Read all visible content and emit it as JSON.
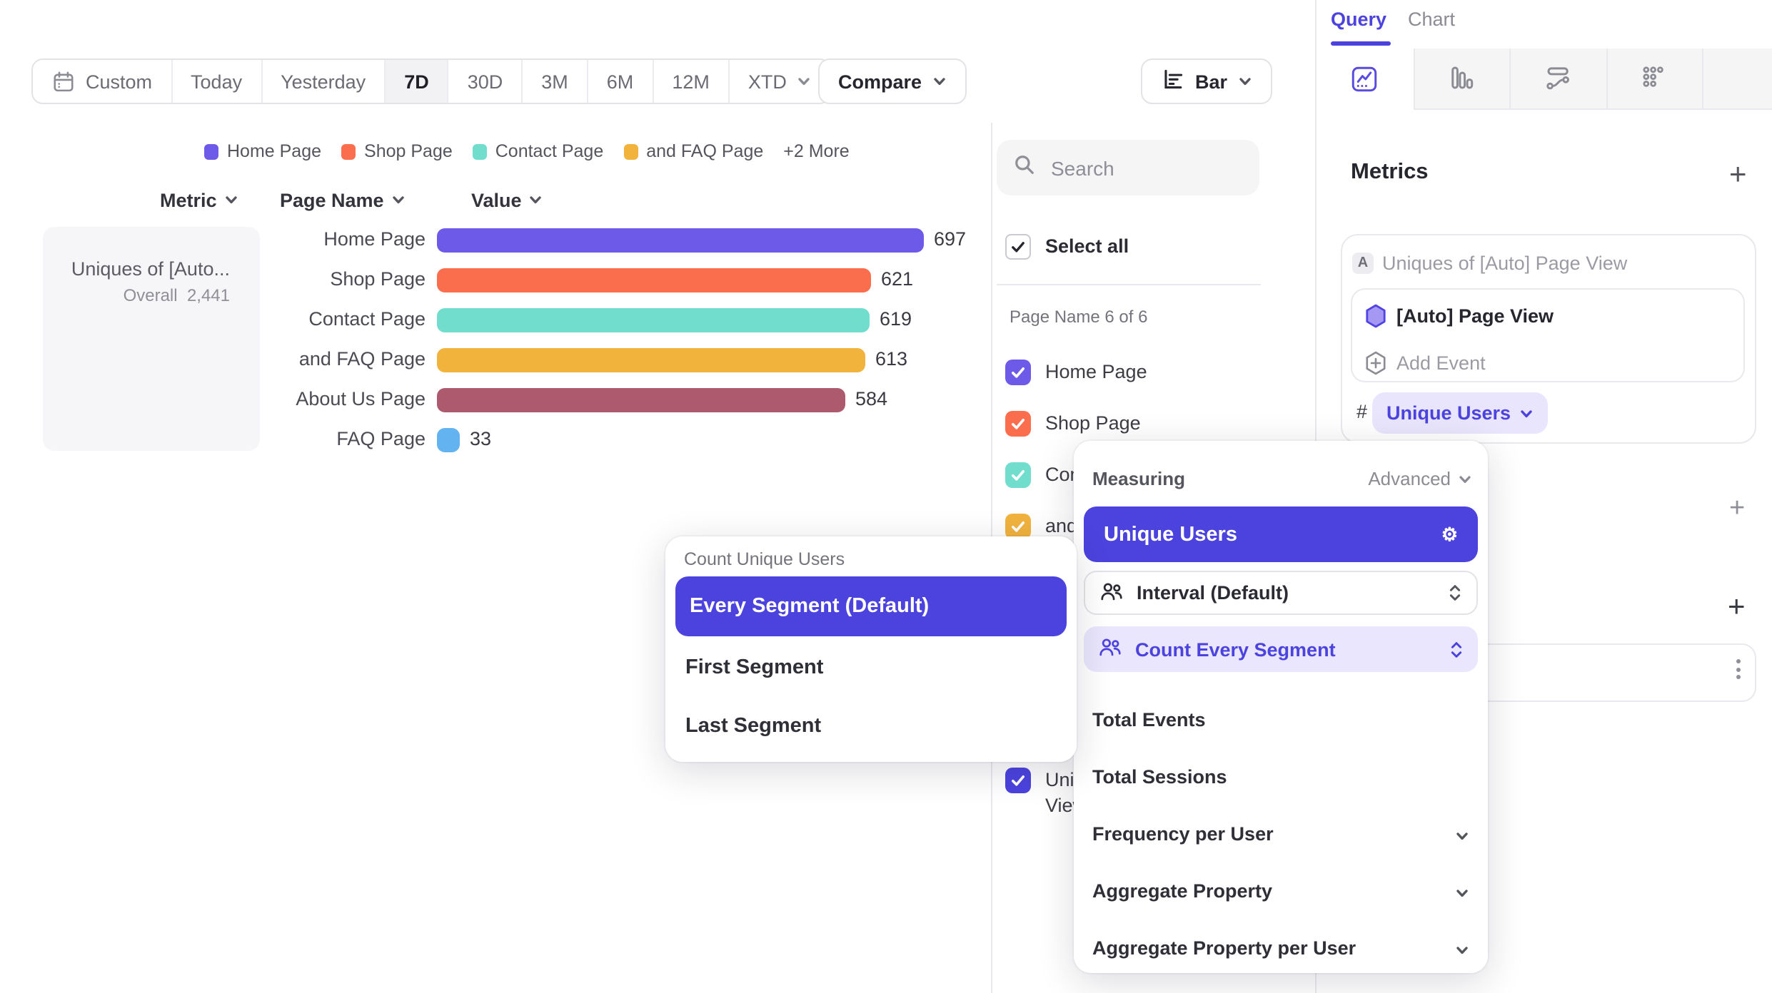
{
  "colors": {
    "accent": "#4c43df",
    "accent_light": "#e8e5fc",
    "bar_purple": "#6e5ae8",
    "bar_orange": "#fa6e4e",
    "bar_teal": "#70ddcd",
    "bar_yellow": "#f2b33d",
    "bar_maroon": "#ad5a6e",
    "bar_blue": "#63b3f0",
    "border": "#e9e9ed"
  },
  "toolbar": {
    "date_ranges": [
      "Custom",
      "Today",
      "Yesterday",
      "7D",
      "30D",
      "3M",
      "6M",
      "12M",
      "XTD"
    ],
    "selected_range": "7D",
    "compare_label": "Compare",
    "chart_type_label": "Bar"
  },
  "legend": {
    "items": [
      {
        "label": "Home Page",
        "color": "#6e5ae8"
      },
      {
        "label": "Shop Page",
        "color": "#fa6e4e"
      },
      {
        "label": "Contact Page",
        "color": "#70ddcd"
      },
      {
        "label": "and FAQ Page",
        "color": "#f2b33d"
      }
    ],
    "more_label": "+2 More"
  },
  "table": {
    "headers": [
      "Metric",
      "Page Name",
      "Value"
    ],
    "metric_card": {
      "title": "Uniques of [Auto...",
      "overall_label": "Overall",
      "overall_value": "2,441"
    },
    "rows": [
      {
        "label": "Home Page",
        "value": 697,
        "display": "697",
        "color": "#6e5ae8"
      },
      {
        "label": "Shop Page",
        "value": 621,
        "display": "621",
        "color": "#fa6e4e"
      },
      {
        "label": "Contact Page",
        "value": 619,
        "display": "619",
        "color": "#70ddcd"
      },
      {
        "label": "and FAQ Page",
        "value": 613,
        "display": "613",
        "color": "#f2b33d"
      },
      {
        "label": "About Us Page",
        "value": 584,
        "display": "584",
        "color": "#ad5a6e"
      },
      {
        "label": "FAQ Page",
        "value": 33,
        "display": "33",
        "color": "#63b3f0"
      }
    ],
    "max_value": 697
  },
  "chart_data": {
    "type": "bar",
    "orientation": "horizontal",
    "title": "Uniques of [Auto] Page View",
    "categories": [
      "Home Page",
      "Shop Page",
      "Contact Page",
      "and FAQ Page",
      "About Us Page",
      "FAQ Page"
    ],
    "values": [
      697,
      621,
      619,
      613,
      584,
      33
    ],
    "overall": 2441,
    "colors": [
      "#6e5ae8",
      "#fa6e4e",
      "#70ddcd",
      "#f2b33d",
      "#ad5a6e",
      "#63b3f0"
    ],
    "xlabel": "Value",
    "ylabel": "Page Name",
    "legend_position": "top"
  },
  "filter_panel": {
    "search_placeholder": "Search",
    "select_all_label": "Select all",
    "section_label": "Page Name 6 of 6",
    "items": [
      {
        "label": "Home Page",
        "color": "#6e5ae8",
        "checked": true
      },
      {
        "label": "Shop Page",
        "color": "#fa6e4e",
        "checked": true
      },
      {
        "label": "Contact Page",
        "color": "#70ddcd",
        "checked": true
      },
      {
        "label": "and FAQ Page",
        "color": "#f2b33d",
        "checked": true
      },
      {
        "label": "About Us Page",
        "color": "#ad5a6e",
        "checked": true
      },
      {
        "label": "FAQ Page",
        "color": "#63b3f0",
        "checked": true
      }
    ],
    "metric_item": {
      "label_line1": "Uniques of [Auto] Page",
      "label_line2": "View",
      "color": "#4c43df",
      "checked": true
    }
  },
  "sidebar": {
    "tabs": {
      "query": "Query",
      "chart": "Chart",
      "active": "Query"
    },
    "metrics": {
      "heading": "Metrics",
      "add_label": "+",
      "letter_badge": "A",
      "metric_title": "Uniques of [Auto] Page View",
      "event_label": "[Auto] Page View",
      "add_event_label": "Add Event",
      "hash_label": "#",
      "measurement_label": "Unique Users"
    },
    "section_add_1": "+",
    "section_add_2": "+"
  },
  "popups": {
    "segment": {
      "title": "Count Unique Users",
      "options": [
        "Every Segment (Default)",
        "First Segment",
        "Last Segment"
      ],
      "selected": "Every Segment (Default)"
    },
    "measuring": {
      "title": "Measuring",
      "advanced_label": "Advanced",
      "selected_measure": "Unique Users",
      "interval_label": "Interval (Default)",
      "segment_mode_label": "Count Every Segment",
      "items": [
        {
          "label": "Total Events",
          "chevron": false
        },
        {
          "label": "Total Sessions",
          "chevron": false
        },
        {
          "label": "Frequency per User",
          "chevron": true
        },
        {
          "label": "Aggregate Property",
          "chevron": true
        },
        {
          "label": "Aggregate Property per User",
          "chevron": true
        }
      ]
    }
  }
}
